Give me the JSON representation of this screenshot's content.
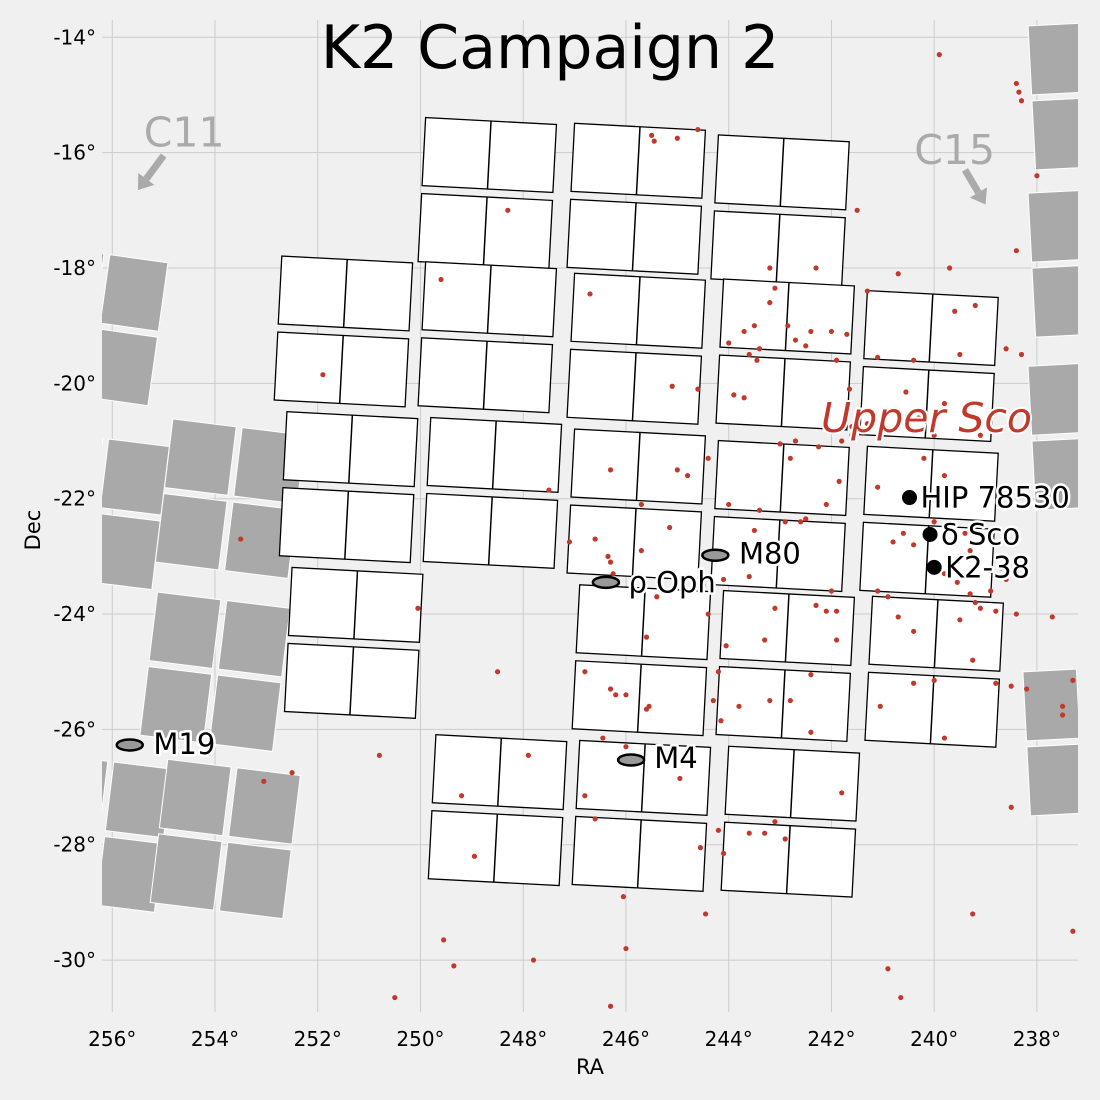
{
  "colors": {
    "background": "#f0f0f0",
    "grid": "#cccccc",
    "ccd_fill": "#ffffff",
    "neighbor_fill": "#a9a9a9",
    "star": "#c0392b",
    "cluster_fill": "#999999",
    "neighbor_text": "#aaaaaa"
  },
  "chart_data": {
    "type": "scatter",
    "title": "K2 Campaign 2",
    "xlabel": "RA",
    "ylabel": "Dec",
    "xlim": [
      256.2,
      237.2
    ],
    "ylim": [
      -30.9,
      -13.7
    ],
    "x_inverted": true,
    "grid": true,
    "x_ticks": [
      256,
      254,
      252,
      250,
      248,
      246,
      244,
      242,
      240,
      238
    ],
    "x_tick_labels": [
      "256°",
      "254°",
      "252°",
      "250°",
      "248°",
      "246°",
      "244°",
      "242°",
      "240°",
      "238°"
    ],
    "y_ticks": [
      -14,
      -16,
      -18,
      -20,
      -22,
      -24,
      -26,
      -28,
      -30
    ],
    "y_tick_labels": [
      "-14°",
      "-16°",
      "-18°",
      "-20°",
      "-22°",
      "-24°",
      "-26°",
      "-28°",
      "-30°"
    ],
    "focal_plane_modules": [
      {
        "ra": 248.7,
        "dec": -16.7,
        "rot": 3
      },
      {
        "ra": 245.8,
        "dec": -16.8,
        "rot": 3
      },
      {
        "ra": 243.0,
        "dec": -17.0,
        "rot": 3
      },
      {
        "ra": 251.5,
        "dec": -19.1,
        "rot": 3
      },
      {
        "ra": 248.7,
        "dec": -19.2,
        "rot": 3
      },
      {
        "ra": 245.8,
        "dec": -19.4,
        "rot": 3
      },
      {
        "ra": 242.9,
        "dec": -19.5,
        "rot": 3
      },
      {
        "ra": 240.1,
        "dec": -19.7,
        "rot": 3
      },
      {
        "ra": 251.4,
        "dec": -21.8,
        "rot": 3
      },
      {
        "ra": 248.6,
        "dec": -21.9,
        "rot": 3
      },
      {
        "ra": 245.8,
        "dec": -22.1,
        "rot": 3
      },
      {
        "ra": 243.0,
        "dec": -22.3,
        "rot": 3
      },
      {
        "ra": 240.1,
        "dec": -22.4,
        "rot": 3
      },
      {
        "ra": 251.3,
        "dec": -24.5,
        "rot": 3
      },
      {
        "ra": 245.7,
        "dec": -24.8,
        "rot": 3
      },
      {
        "ra": 242.9,
        "dec": -24.9,
        "rot": 3
      },
      {
        "ra": 240.0,
        "dec": -25.0,
        "rot": 3
      },
      {
        "ra": 248.5,
        "dec": -27.4,
        "rot": 3
      },
      {
        "ra": 245.7,
        "dec": -27.5,
        "rot": 3
      },
      {
        "ra": 242.8,
        "dec": -27.6,
        "rot": 3
      }
    ],
    "module_size": {
      "ra": 2.55,
      "dec": 2.5
    },
    "neighbor_fields": [
      {
        "ra": 256.3,
        "dec": -19.0,
        "w": 2.4,
        "h": 2.5,
        "rot": 8
      },
      {
        "ra": 256.3,
        "dec": -22.2,
        "w": 2.5,
        "h": 2.5,
        "rot": 7
      },
      {
        "ra": 253.7,
        "dec": -22.0,
        "w": 2.6,
        "h": 2.5,
        "rot": 7
      },
      {
        "ra": 254.0,
        "dec": -25.0,
        "w": 2.6,
        "h": 2.5,
        "rot": 7
      },
      {
        "ra": 256.2,
        "dec": -27.8,
        "w": 2.4,
        "h": 2.5,
        "rot": 7
      },
      {
        "ra": 253.8,
        "dec": -27.9,
        "w": 2.6,
        "h": 2.5,
        "rot": 7
      },
      {
        "ra": 237.0,
        "dec": -15.0,
        "w": 2.2,
        "h": 2.5,
        "rot": -3
      },
      {
        "ra": 237.0,
        "dec": -17.9,
        "w": 2.2,
        "h": 2.5,
        "rot": -3
      },
      {
        "ra": 237.0,
        "dec": -20.9,
        "w": 2.2,
        "h": 2.5,
        "rot": -3
      },
      {
        "ra": 237.1,
        "dec": -26.2,
        "w": 2.2,
        "h": 2.5,
        "rot": -3
      }
    ],
    "clusters": [
      {
        "name": "M80",
        "ra": 244.26,
        "dec": -22.98,
        "label_ra": 243.8,
        "label_dec": -22.95
      },
      {
        "name": "ρ Oph",
        "ra": 246.39,
        "dec": -23.45,
        "label_ra": 245.95,
        "label_dec": -23.45
      },
      {
        "name": "M19",
        "ra": 255.66,
        "dec": -26.27,
        "label_ra": 255.2,
        "label_dec": -26.25
      },
      {
        "name": "M4",
        "ra": 245.9,
        "dec": -26.53,
        "label_ra": 245.45,
        "label_dec": -26.5
      }
    ],
    "targets": [
      {
        "name": "HIP 78530",
        "ra": 240.48,
        "dec": -21.98
      },
      {
        "name": "δ Sco",
        "ra": 240.08,
        "dec": -22.62
      },
      {
        "name": "K2-38",
        "ra": 240.0,
        "dec": -23.19
      }
    ],
    "region_label": {
      "text": "Upper Sco",
      "ra": 242.2,
      "dec": -20.6
    },
    "neighbor_campaigns": [
      {
        "name": "C11",
        "label_ra": 254.6,
        "label_dec": -15.65,
        "arrow_from": [
          255.0,
          -16.05
        ],
        "arrow_to": [
          255.5,
          -16.65
        ]
      },
      {
        "name": "C15",
        "label_ra": 239.6,
        "label_dec": -15.95,
        "arrow_from": [
          239.4,
          -16.3
        ],
        "arrow_to": [
          239.0,
          -16.9
        ]
      }
    ],
    "stars": [
      [
        239.9,
        -14.3
      ],
      [
        238.4,
        -14.8
      ],
      [
        238.35,
        -14.95
      ],
      [
        238.3,
        -15.1
      ],
      [
        238.0,
        -16.4
      ],
      [
        238.4,
        -17.7
      ],
      [
        244.6,
        -15.6
      ],
      [
        245.0,
        -15.75
      ],
      [
        245.5,
        -15.7
      ],
      [
        245.45,
        -15.8
      ],
      [
        248.3,
        -17.0
      ],
      [
        241.5,
        -17.0
      ],
      [
        243.2,
        -18.0
      ],
      [
        242.3,
        -18.0
      ],
      [
        240.7,
        -18.1
      ],
      [
        239.7,
        -18.0
      ],
      [
        241.3,
        -18.4
      ],
      [
        239.2,
        -18.65
      ],
      [
        239.6,
        -18.75
      ],
      [
        249.6,
        -18.2
      ],
      [
        246.7,
        -18.45
      ],
      [
        243.1,
        -18.35
      ],
      [
        243.2,
        -18.6
      ],
      [
        242.85,
        -19.0
      ],
      [
        243.5,
        -19.0
      ],
      [
        243.7,
        -19.1
      ],
      [
        243.4,
        -19.4
      ],
      [
        243.6,
        -19.5
      ],
      [
        243.45,
        -19.6
      ],
      [
        244.0,
        -19.3
      ],
      [
        242.4,
        -19.1
      ],
      [
        242.0,
        -19.1
      ],
      [
        241.7,
        -19.15
      ],
      [
        242.7,
        -19.25
      ],
      [
        242.5,
        -19.35
      ],
      [
        241.9,
        -19.6
      ],
      [
        241.1,
        -19.55
      ],
      [
        240.4,
        -19.6
      ],
      [
        239.5,
        -19.5
      ],
      [
        238.3,
        -19.5
      ],
      [
        238.6,
        -19.4
      ],
      [
        245.1,
        -20.05
      ],
      [
        244.6,
        -20.1
      ],
      [
        243.9,
        -20.2
      ],
      [
        243.7,
        -20.25
      ],
      [
        241.65,
        -20.1
      ],
      [
        240.55,
        -20.15
      ],
      [
        239.8,
        -20.35
      ],
      [
        241.6,
        -20.75
      ],
      [
        241.3,
        -20.7
      ],
      [
        240.3,
        -20.6
      ],
      [
        241.6,
        -20.9
      ],
      [
        241.8,
        -21.0
      ],
      [
        240.0,
        -20.9
      ],
      [
        239.1,
        -20.9
      ],
      [
        243.0,
        -21.05
      ],
      [
        242.7,
        -21.0
      ],
      [
        242.25,
        -21.1
      ],
      [
        244.4,
        -21.3
      ],
      [
        245.0,
        -21.5
      ],
      [
        244.8,
        -21.6
      ],
      [
        242.8,
        -21.3
      ],
      [
        241.85,
        -21.7
      ],
      [
        240.2,
        -21.3
      ],
      [
        239.8,
        -21.6
      ],
      [
        241.1,
        -21.8
      ],
      [
        246.3,
        -21.5
      ],
      [
        247.5,
        -21.85
      ],
      [
        245.7,
        -22.1
      ],
      [
        244.0,
        -22.1
      ],
      [
        243.4,
        -22.2
      ],
      [
        242.1,
        -22.1
      ],
      [
        242.5,
        -22.35
      ],
      [
        242.6,
        -22.4
      ],
      [
        242.9,
        -22.4
      ],
      [
        243.5,
        -22.55
      ],
      [
        245.15,
        -22.5
      ],
      [
        246.6,
        -22.7
      ],
      [
        246.35,
        -23.0
      ],
      [
        245.7,
        -22.9
      ],
      [
        240.8,
        -22.75
      ],
      [
        240.6,
        -22.6
      ],
      [
        240.4,
        -22.8
      ],
      [
        240.0,
        -22.4
      ],
      [
        239.65,
        -22.5
      ],
      [
        239.4,
        -22.6
      ],
      [
        239.3,
        -22.9
      ],
      [
        239.5,
        -23.0
      ],
      [
        239.8,
        -23.3
      ],
      [
        246.3,
        -23.1
      ],
      [
        246.25,
        -23.3
      ],
      [
        247.1,
        -22.75
      ],
      [
        243.6,
        -23.35
      ],
      [
        243.1,
        -23.1
      ],
      [
        244.1,
        -23.4
      ],
      [
        244.5,
        -23.5
      ],
      [
        242.0,
        -23.6
      ],
      [
        241.1,
        -23.6
      ],
      [
        240.9,
        -23.7
      ],
      [
        242.3,
        -23.85
      ],
      [
        242.1,
        -23.95
      ],
      [
        241.9,
        -23.95
      ],
      [
        239.55,
        -23.45
      ],
      [
        239.3,
        -23.65
      ],
      [
        239.2,
        -23.8
      ],
      [
        238.9,
        -23.6
      ],
      [
        239.1,
        -23.9
      ],
      [
        238.8,
        -23.95
      ],
      [
        238.6,
        -23.4
      ],
      [
        238.7,
        -23.2
      ],
      [
        238.4,
        -24.0
      ],
      [
        237.7,
        -24.05
      ],
      [
        240.7,
        -24.05
      ],
      [
        239.5,
        -24.1
      ],
      [
        243.1,
        -23.9
      ],
      [
        244.4,
        -24.0
      ],
      [
        245.4,
        -23.7
      ],
      [
        250.05,
        -23.9
      ],
      [
        253.5,
        -22.7
      ],
      [
        245.6,
        -24.4
      ],
      [
        244.05,
        -24.55
      ],
      [
        243.3,
        -24.45
      ],
      [
        241.9,
        -24.45
      ],
      [
        240.4,
        -24.3
      ],
      [
        239.25,
        -24.8
      ],
      [
        244.2,
        -25.0
      ],
      [
        242.4,
        -25.05
      ],
      [
        241.05,
        -25.6
      ],
      [
        240.4,
        -25.2
      ],
      [
        240.0,
        -25.15
      ],
      [
        238.8,
        -25.2
      ],
      [
        238.5,
        -25.25
      ],
      [
        238.2,
        -25.3
      ],
      [
        237.3,
        -25.15
      ],
      [
        237.5,
        -25.6
      ],
      [
        237.5,
        -25.75
      ],
      [
        237.15,
        -26.0
      ],
      [
        246.8,
        -25.0
      ],
      [
        248.5,
        -25.0
      ],
      [
        246.3,
        -25.3
      ],
      [
        246.2,
        -25.4
      ],
      [
        246.0,
        -25.4
      ],
      [
        245.55,
        -25.6
      ],
      [
        245.6,
        -25.65
      ],
      [
        244.15,
        -25.85
      ],
      [
        242.4,
        -26.05
      ],
      [
        239.8,
        -26.15
      ],
      [
        244.3,
        -25.5
      ],
      [
        243.8,
        -25.6
      ],
      [
        243.2,
        -25.5
      ],
      [
        242.8,
        -25.5
      ],
      [
        246.45,
        -26.15
      ],
      [
        246.0,
        -26.3
      ],
      [
        247.9,
        -26.45
      ],
      [
        250.8,
        -26.45
      ],
      [
        252.5,
        -26.75
      ],
      [
        253.05,
        -26.9
      ],
      [
        249.2,
        -27.15
      ],
      [
        244.95,
        -26.85
      ],
      [
        241.8,
        -27.1
      ],
      [
        238.5,
        -27.35
      ],
      [
        246.8,
        -27.15
      ],
      [
        246.6,
        -27.55
      ],
      [
        244.2,
        -27.75
      ],
      [
        243.6,
        -27.8
      ],
      [
        243.3,
        -27.8
      ],
      [
        243.1,
        -27.6
      ],
      [
        242.9,
        -27.9
      ],
      [
        244.55,
        -28.05
      ],
      [
        244.1,
        -28.15
      ],
      [
        248.95,
        -28.2
      ],
      [
        246.05,
        -28.9
      ],
      [
        244.45,
        -29.2
      ],
      [
        239.25,
        -29.2
      ],
      [
        237.0,
        -29.15
      ],
      [
        237.3,
        -29.5
      ],
      [
        249.55,
        -29.65
      ],
      [
        246.0,
        -29.8
      ],
      [
        249.35,
        -30.1
      ],
      [
        247.8,
        -30.0
      ],
      [
        240.9,
        -30.15
      ],
      [
        240.65,
        -30.65
      ],
      [
        250.5,
        -30.65
      ],
      [
        246.3,
        -30.8
      ],
      [
        251.9,
        -19.85
      ]
    ]
  }
}
